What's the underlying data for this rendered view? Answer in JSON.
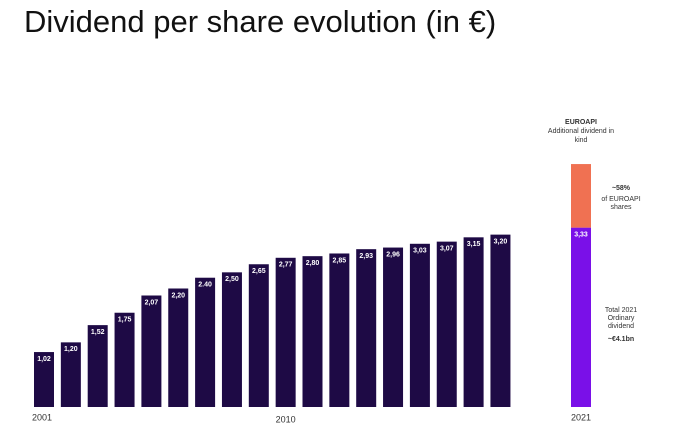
{
  "chart_data": {
    "type": "bar",
    "title": "Dividend per share evolution (in €)",
    "categories": [
      "2001",
      null,
      null,
      null,
      null,
      null,
      null,
      null,
      null,
      "2010",
      null,
      null,
      null,
      null,
      null,
      null,
      null,
      null,
      null,
      null,
      "2021"
    ],
    "series": [
      {
        "colors": [
          "#1e0a45",
          "#1e0a45",
          "#1e0a45",
          "#1e0a45",
          "#1e0a45",
          "#1e0a45",
          "#1e0a45",
          "#1e0a45",
          "#1e0a45",
          "#1e0a45",
          "#1e0a45",
          "#1e0a45",
          "#1e0a45",
          "#1e0a45",
          "#1e0a45",
          "#1e0a45",
          "#1e0a45",
          "#1e0a45",
          "#1e0a45",
          "#1e0a45",
          "#7a10e8"
        ],
        "values": [
          1.02,
          1.2,
          1.52,
          1.75,
          2.07,
          2.2,
          2.4,
          2.5,
          2.65,
          2.77,
          2.8,
          2.85,
          2.93,
          2.96,
          3.03,
          3.07,
          3.15,
          3.2,
          null,
          null,
          3.33
        ],
        "value_labels": [
          "1,02",
          "1,20",
          "1,52",
          "1,75",
          "2,07",
          "2,20",
          "2.40",
          "2,50",
          "2,65",
          "2,77",
          "2,80",
          "2,85",
          "2,93",
          "2,96",
          "3,03",
          "3,07",
          "3,15",
          "3,20",
          null,
          null,
          "3,33"
        ]
      },
      {
        "color": "#f07152",
        "values": [
          null,
          null,
          null,
          null,
          null,
          null,
          null,
          null,
          null,
          null,
          null,
          null,
          null,
          null,
          null,
          null,
          null,
          null,
          null,
          null,
          1.18
        ]
      }
    ],
    "ylim": [
      0,
      3.75
    ],
    "annotations": [
      "EUROAPI",
      "Additional dividend in",
      "kind",
      "~58%",
      "of EUROAPI",
      "shares",
      "Total 2021",
      "Ordinary",
      "dividend",
      "~€4.1bn"
    ]
  }
}
